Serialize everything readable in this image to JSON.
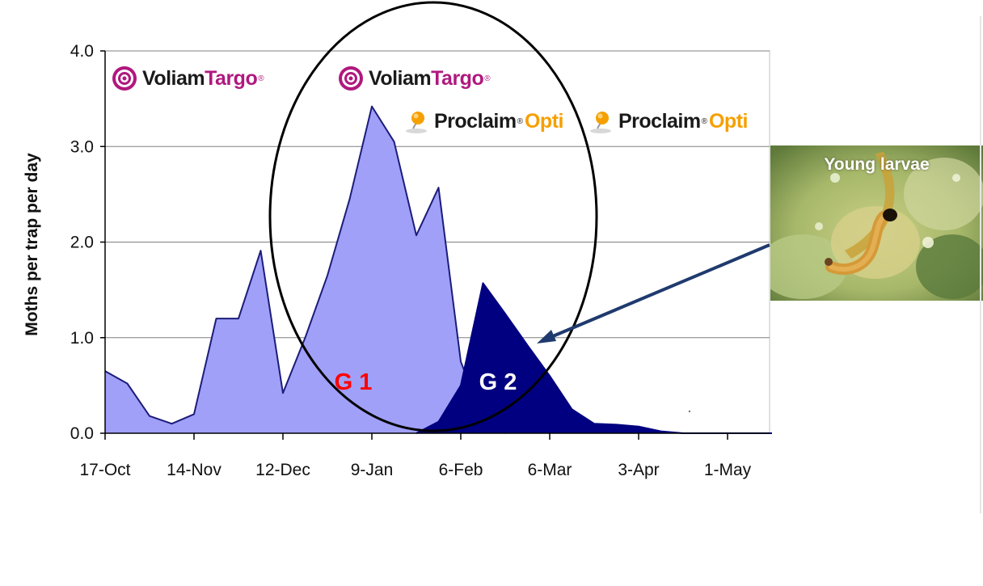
{
  "chart_data": {
    "type": "area",
    "title": "",
    "xlabel": "",
    "ylabel": "Moths per trap per day",
    "ylim": [
      0,
      4.0
    ],
    "yticks": [
      "0.0",
      "1.0",
      "2.0",
      "3.0",
      "4.0"
    ],
    "x_tick_labels": [
      "17-Oct",
      "14-Nov",
      "12-Dec",
      "9-Jan",
      "6-Feb",
      "6-Mar",
      "3-Apr",
      "1-May"
    ],
    "grid": true,
    "colors": {
      "G1": "#a0a0f8",
      "G1_line": "#1c1c7a",
      "G2": "#000080",
      "grid": "#808080"
    },
    "series": [
      {
        "name": "G 1",
        "label_color": "#ff0000",
        "points": [
          [
            "17-Oct",
            0.65
          ],
          [
            "24-Oct",
            0.52
          ],
          [
            "31-Oct",
            0.18
          ],
          [
            "7-Nov",
            0.1
          ],
          [
            "14-Nov",
            0.2
          ],
          [
            "21-Nov",
            1.2
          ],
          [
            "28-Nov",
            1.2
          ],
          [
            "5-Dec",
            1.91
          ],
          [
            "12-Dec",
            0.42
          ],
          [
            "19-Dec",
            1.0
          ],
          [
            "26-Dec",
            1.65
          ],
          [
            "2-Jan",
            2.45
          ],
          [
            "9-Jan",
            3.42
          ],
          [
            "16-Jan",
            3.05
          ],
          [
            "23-Jan",
            2.07
          ],
          [
            "30-Jan",
            2.57
          ],
          [
            "6-Feb",
            0.75
          ],
          [
            "13-Feb",
            0.15
          ],
          [
            "20-Feb",
            0.0
          ]
        ]
      },
      {
        "name": "G 2",
        "label_color": "#ffffff",
        "points": [
          [
            "23-Jan",
            0.0
          ],
          [
            "30-Jan",
            0.12
          ],
          [
            "6-Feb",
            0.5
          ],
          [
            "13-Feb",
            1.57
          ],
          [
            "20-Feb",
            1.25
          ],
          [
            "27-Feb",
            0.92
          ],
          [
            "6-Mar",
            0.6
          ],
          [
            "13-Mar",
            0.25
          ],
          [
            "20-Mar",
            0.1
          ],
          [
            "27-Mar",
            0.09
          ],
          [
            "3-Apr",
            0.07
          ],
          [
            "10-Apr",
            0.02
          ],
          [
            "17-Apr",
            0.0
          ],
          [
            "1-May",
            0.0
          ],
          [
            "8-May",
            0.0
          ],
          [
            "15-May",
            0.0
          ]
        ]
      }
    ]
  },
  "products": {
    "voliam": {
      "part1": "Voliam",
      "part2": "Targo",
      "color1": "#1a1a1a",
      "color2": "#b0187e",
      "reg": "®"
    },
    "proclaim": {
      "part1": "Proclaim",
      "part2": "Opti",
      "color1": "#1a1a1a",
      "color2": "#f5a000",
      "reg": "®"
    }
  },
  "photo": {
    "caption": "Young larvae"
  }
}
